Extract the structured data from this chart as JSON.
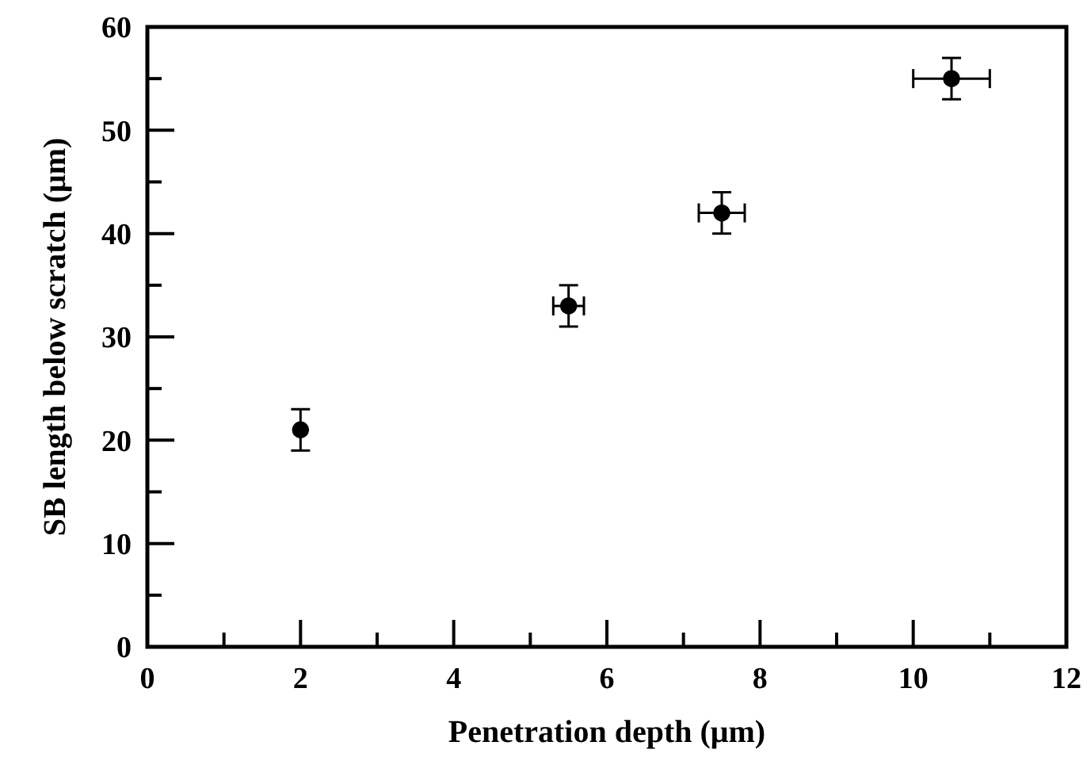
{
  "chart_data": {
    "type": "scatter",
    "xlabel": "Penetration depth (μm)",
    "ylabel": "SB length below scratch (μm)",
    "x": [
      2,
      5.5,
      7.5,
      10.5
    ],
    "values": [
      21,
      33,
      42,
      55
    ],
    "color": "#000000",
    "marker": "circle",
    "errors": [
      2,
      2,
      2,
      2
    ],
    "xerrors": [
      null,
      0.2,
      0.3,
      0.5
    ],
    "xlim": [
      0,
      12
    ],
    "xticks": [
      0,
      {
        "value": 1,
        "label": null
      },
      2,
      {
        "value": 3,
        "label": null
      },
      4,
      {
        "value": 5,
        "label": null
      },
      6,
      {
        "value": 7,
        "label": null
      },
      8,
      {
        "value": 9,
        "label": null
      },
      10,
      {
        "value": 11,
        "label": null
      },
      12
    ],
    "ylim": [
      0,
      60
    ],
    "yticks": [
      0,
      {
        "value": 5,
        "label": null
      },
      10,
      {
        "value": 15,
        "label": null
      },
      20,
      {
        "value": 25,
        "label": null
      },
      30,
      {
        "value": 35,
        "label": null
      },
      40,
      {
        "value": 45,
        "label": null
      },
      50,
      {
        "value": 55,
        "label": null
      },
      60
    ]
  }
}
